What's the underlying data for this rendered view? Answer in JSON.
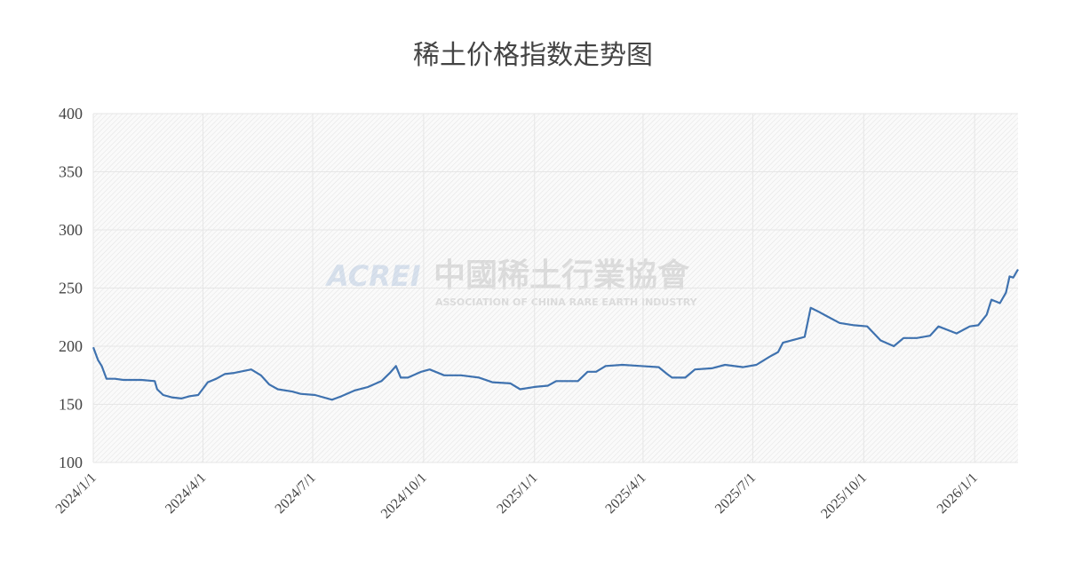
{
  "chart_data": {
    "type": "line",
    "title": "稀土价格指数走势图",
    "watermark": {
      "logo": "ACREI",
      "name": "中國稀土行業協會",
      "subtitle": "ASSOCIATION OF CHINA RARE EARTH INDUSTRY"
    },
    "x": [
      "2024/1/1",
      "2024/1/5",
      "2024/1/8",
      "2024/1/12",
      "2024/1/19",
      "2024/1/26",
      "2024/2/10",
      "2024/2/21",
      "2024/2/23",
      "2024/2/28",
      "2024/3/6",
      "2024/3/14",
      "2024/3/21",
      "2024/3/28",
      "2024/4/5",
      "2024/4/12",
      "2024/4/19",
      "2024/4/27",
      "2024/5/11",
      "2024/5/19",
      "2024/5/26",
      "2024/6/2",
      "2024/6/14",
      "2024/6/21",
      "2024/7/3",
      "2024/7/17",
      "2024/7/25",
      "2024/8/5",
      "2024/8/16",
      "2024/8/27",
      "2024/9/3",
      "2024/9/8",
      "2024/9/12",
      "2024/9/18",
      "2024/9/29",
      "2024/10/6",
      "2024/10/18",
      "2024/11/1",
      "2024/11/16",
      "2024/11/27",
      "2024/12/12",
      "2024/12/20",
      "2025/1/1",
      "2025/1/12",
      "2025/1/19",
      "2025/2/6",
      "2025/2/14",
      "2025/2/21",
      "2025/3/1",
      "2025/3/15",
      "2025/3/30",
      "2025/4/14",
      "2025/4/21",
      "2025/4/25",
      "2025/5/6",
      "2025/5/14",
      "2025/5/28",
      "2025/6/8",
      "2025/6/23",
      "2025/7/4",
      "2025/7/15",
      "2025/7/22",
      "2025/7/26",
      "2025/8/6",
      "2025/8/13",
      "2025/8/18",
      "2025/8/24",
      "2025/8/31",
      "2025/9/11",
      "2025/9/23",
      "2025/10/4",
      "2025/10/15",
      "2025/10/26",
      "2025/11/3",
      "2025/11/14",
      "2025/11/25",
      "2025/12/2",
      "2025/12/17",
      "2025/12/28",
      "2026/1/4",
      "2026/1/11",
      "2026/1/15",
      "2026/1/22",
      "2026/1/27",
      "2026/1/30",
      "2026/2/2",
      "2026/2/6"
    ],
    "series": [
      {
        "name": "稀土价格指数",
        "color": "#3f72af",
        "values": [
          199,
          188,
          183,
          172,
          172,
          171,
          171,
          170,
          163,
          158,
          156,
          155,
          157,
          158,
          169,
          172,
          176,
          177,
          180,
          175,
          167,
          163,
          161,
          159,
          158,
          154,
          157,
          162,
          165,
          170,
          177,
          183,
          173,
          173,
          178,
          180,
          175,
          175,
          173,
          169,
          168,
          163,
          165,
          166,
          170,
          170,
          178,
          178,
          183,
          184,
          183,
          182,
          176,
          173,
          173,
          180,
          181,
          184,
          182,
          184,
          191,
          195,
          203,
          206,
          208,
          233,
          230,
          226,
          220,
          218,
          217,
          205,
          200,
          207,
          207,
          209,
          217,
          211,
          217,
          218,
          227,
          240,
          237,
          246,
          260,
          259,
          266
        ]
      }
    ],
    "xlim": [
      "2024/1/1",
      "2026/2/6"
    ],
    "xticks": [
      "2024/1/1",
      "2024/4/1",
      "2024/7/1",
      "2024/10/1",
      "2025/1/1",
      "2025/4/1",
      "2025/7/1",
      "2025/10/1",
      "2026/1/1"
    ],
    "ylim": [
      100,
      400
    ],
    "yticks": [
      100,
      150,
      200,
      250,
      300,
      350,
      400
    ],
    "grid": true
  }
}
